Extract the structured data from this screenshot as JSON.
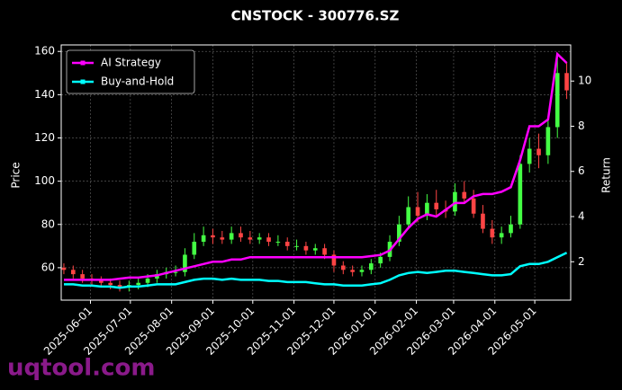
{
  "chart_data": {
    "type": "candlestick",
    "title": "CNSTOCK - 300776.SZ",
    "ylabel": "Price",
    "y2label": "Return",
    "watermark": "uqtool.com",
    "x": [
      "2025-05-12",
      "2025-05-19",
      "2025-05-26",
      "2025-06-02",
      "2025-06-09",
      "2025-06-16",
      "2025-06-23",
      "2025-06-30",
      "2025-07-07",
      "2025-07-14",
      "2025-07-21",
      "2025-07-28",
      "2025-08-04",
      "2025-08-11",
      "2025-08-18",
      "2025-08-25",
      "2025-09-01",
      "2025-09-08",
      "2025-09-15",
      "2025-09-22",
      "2025-09-29",
      "2025-10-06",
      "2025-10-13",
      "2025-10-20",
      "2025-10-27",
      "2025-11-03",
      "2025-11-10",
      "2025-11-17",
      "2025-11-24",
      "2025-12-01",
      "2025-12-08",
      "2025-12-15",
      "2025-12-22",
      "2025-12-29",
      "2026-01-05",
      "2026-01-12",
      "2026-01-19",
      "2026-01-26",
      "2026-02-02",
      "2026-02-09",
      "2026-02-16",
      "2026-02-23",
      "2026-03-02",
      "2026-03-09",
      "2026-03-16",
      "2026-03-23",
      "2026-03-30",
      "2026-04-06",
      "2026-04-13",
      "2026-04-20",
      "2026-04-27",
      "2026-05-04",
      "2026-05-11",
      "2026-05-18",
      "2026-05-25"
    ],
    "open": [
      60,
      59,
      57,
      55,
      54,
      53,
      52,
      51,
      52,
      53,
      55,
      57,
      58,
      58,
      66,
      72,
      75,
      74,
      73,
      76,
      74,
      73,
      74,
      72,
      72,
      70,
      70,
      68,
      69,
      66,
      61,
      59,
      58,
      59,
      62,
      65,
      72,
      80,
      88,
      84,
      90,
      87,
      86,
      95,
      92,
      85,
      78,
      74,
      76,
      80,
      108,
      115,
      112,
      125,
      150
    ],
    "high": [
      62,
      61,
      59,
      57,
      56,
      55,
      54,
      54,
      55,
      57,
      59,
      60,
      61,
      69,
      76,
      79,
      78,
      77,
      79,
      79,
      77,
      76,
      76,
      75,
      74,
      73,
      72,
      71,
      71,
      68,
      63,
      61,
      61,
      64,
      67,
      75,
      84,
      93,
      95,
      94,
      96,
      91,
      99,
      100,
      96,
      89,
      82,
      79,
      84,
      112,
      120,
      122,
      130,
      157,
      155
    ],
    "low": [
      57,
      55,
      53,
      52,
      51,
      50,
      49,
      49,
      50,
      51,
      53,
      55,
      56,
      56,
      64,
      70,
      71,
      71,
      71,
      72,
      71,
      71,
      70,
      70,
      68,
      68,
      66,
      66,
      64,
      58,
      57,
      56,
      56,
      57,
      60,
      63,
      70,
      78,
      81,
      82,
      84,
      83,
      84,
      90,
      83,
      76,
      71,
      71,
      74,
      78,
      104,
      106,
      108,
      120,
      138
    ],
    "close": [
      59,
      57,
      55,
      54,
      53,
      52,
      51,
      52,
      53,
      55,
      57,
      58,
      58,
      66,
      72,
      75,
      74,
      73,
      76,
      74,
      73,
      74,
      72,
      72,
      70,
      70,
      68,
      69,
      66,
      61,
      59,
      58,
      59,
      62,
      65,
      72,
      80,
      88,
      84,
      90,
      87,
      86,
      95,
      92,
      85,
      78,
      74,
      76,
      80,
      108,
      115,
      112,
      125,
      150,
      142
    ],
    "up_color": "#44ff44",
    "down_color": "#ff4444",
    "series": [
      {
        "name": "AI Strategy",
        "color": "#ff00ff",
        "axis": "y2",
        "values": [
          1.2,
          1.2,
          1.2,
          1.2,
          1.2,
          1.2,
          1.25,
          1.3,
          1.3,
          1.35,
          1.4,
          1.5,
          1.6,
          1.7,
          1.8,
          1.9,
          2.0,
          2.0,
          2.1,
          2.1,
          2.2,
          2.2,
          2.2,
          2.2,
          2.2,
          2.2,
          2.2,
          2.2,
          2.2,
          2.2,
          2.2,
          2.2,
          2.2,
          2.25,
          2.3,
          2.5,
          3.0,
          3.5,
          3.9,
          4.1,
          4.0,
          4.3,
          4.6,
          4.6,
          4.9,
          5.0,
          5.0,
          5.1,
          5.3,
          6.5,
          8.0,
          8.0,
          8.3,
          11.2,
          10.8
        ]
      },
      {
        "name": "Buy-and-Hold",
        "color": "#00ffff",
        "axis": "y2",
        "values": [
          1.0,
          1.0,
          0.95,
          0.95,
          0.9,
          0.9,
          0.85,
          0.9,
          0.9,
          0.95,
          1.0,
          1.0,
          1.0,
          1.1,
          1.2,
          1.25,
          1.25,
          1.2,
          1.25,
          1.2,
          1.2,
          1.2,
          1.15,
          1.15,
          1.1,
          1.1,
          1.1,
          1.05,
          1.0,
          1.0,
          0.95,
          0.95,
          0.95,
          1.0,
          1.05,
          1.2,
          1.4,
          1.5,
          1.55,
          1.5,
          1.55,
          1.6,
          1.6,
          1.55,
          1.5,
          1.45,
          1.4,
          1.4,
          1.45,
          1.8,
          1.9,
          1.9,
          2.0,
          2.2,
          2.4
        ]
      }
    ],
    "xlim": [
      "2025-05-10",
      "2026-05-28"
    ],
    "xticks": [
      "2025-06-01",
      "2025-07-01",
      "2025-08-01",
      "2025-09-01",
      "2025-10-01",
      "2025-11-01",
      "2025-12-01",
      "2026-01-01",
      "2026-02-01",
      "2026-03-01",
      "2026-04-01",
      "2026-05-01"
    ],
    "ylim": [
      45,
      163
    ],
    "yticks": [
      60,
      80,
      100,
      120,
      140,
      160
    ],
    "y2lim": [
      0.3,
      11.6
    ],
    "y2ticks": [
      2,
      4,
      6,
      8,
      10
    ],
    "grid": true,
    "legend": "upper left"
  }
}
